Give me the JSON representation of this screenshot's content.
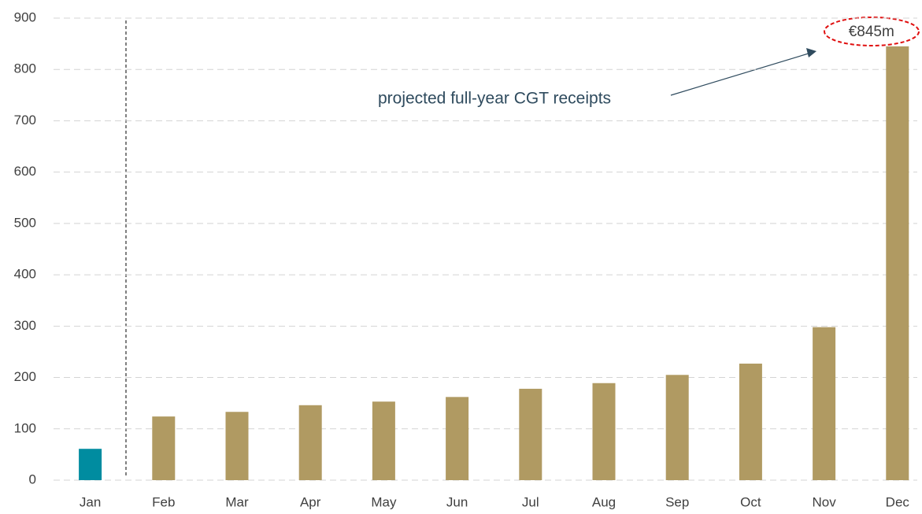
{
  "chart_data": {
    "type": "bar",
    "categories": [
      "Jan",
      "Feb",
      "Mar",
      "Apr",
      "May",
      "Jun",
      "Jul",
      "Aug",
      "Sep",
      "Oct",
      "Nov",
      "Dec"
    ],
    "values": [
      61,
      124,
      133,
      146,
      153,
      162,
      178,
      189,
      205,
      227,
      298,
      845
    ],
    "value_labels": [
      null,
      null,
      null,
      null,
      null,
      null,
      null,
      null,
      null,
      null,
      null,
      "€845m"
    ],
    "colors": [
      "#008ca0",
      "#b09a62",
      "#b09a62",
      "#b09a62",
      "#b09a62",
      "#b09a62",
      "#b09a62",
      "#b09a62",
      "#b09a62",
      "#b09a62",
      "#b09a62",
      "#b09a62"
    ],
    "ylim": [
      0,
      900
    ],
    "yticks": [
      0,
      100,
      200,
      300,
      400,
      500,
      600,
      700,
      800,
      900
    ],
    "grid": true,
    "annotation": "projected full-year CGT receipts"
  }
}
